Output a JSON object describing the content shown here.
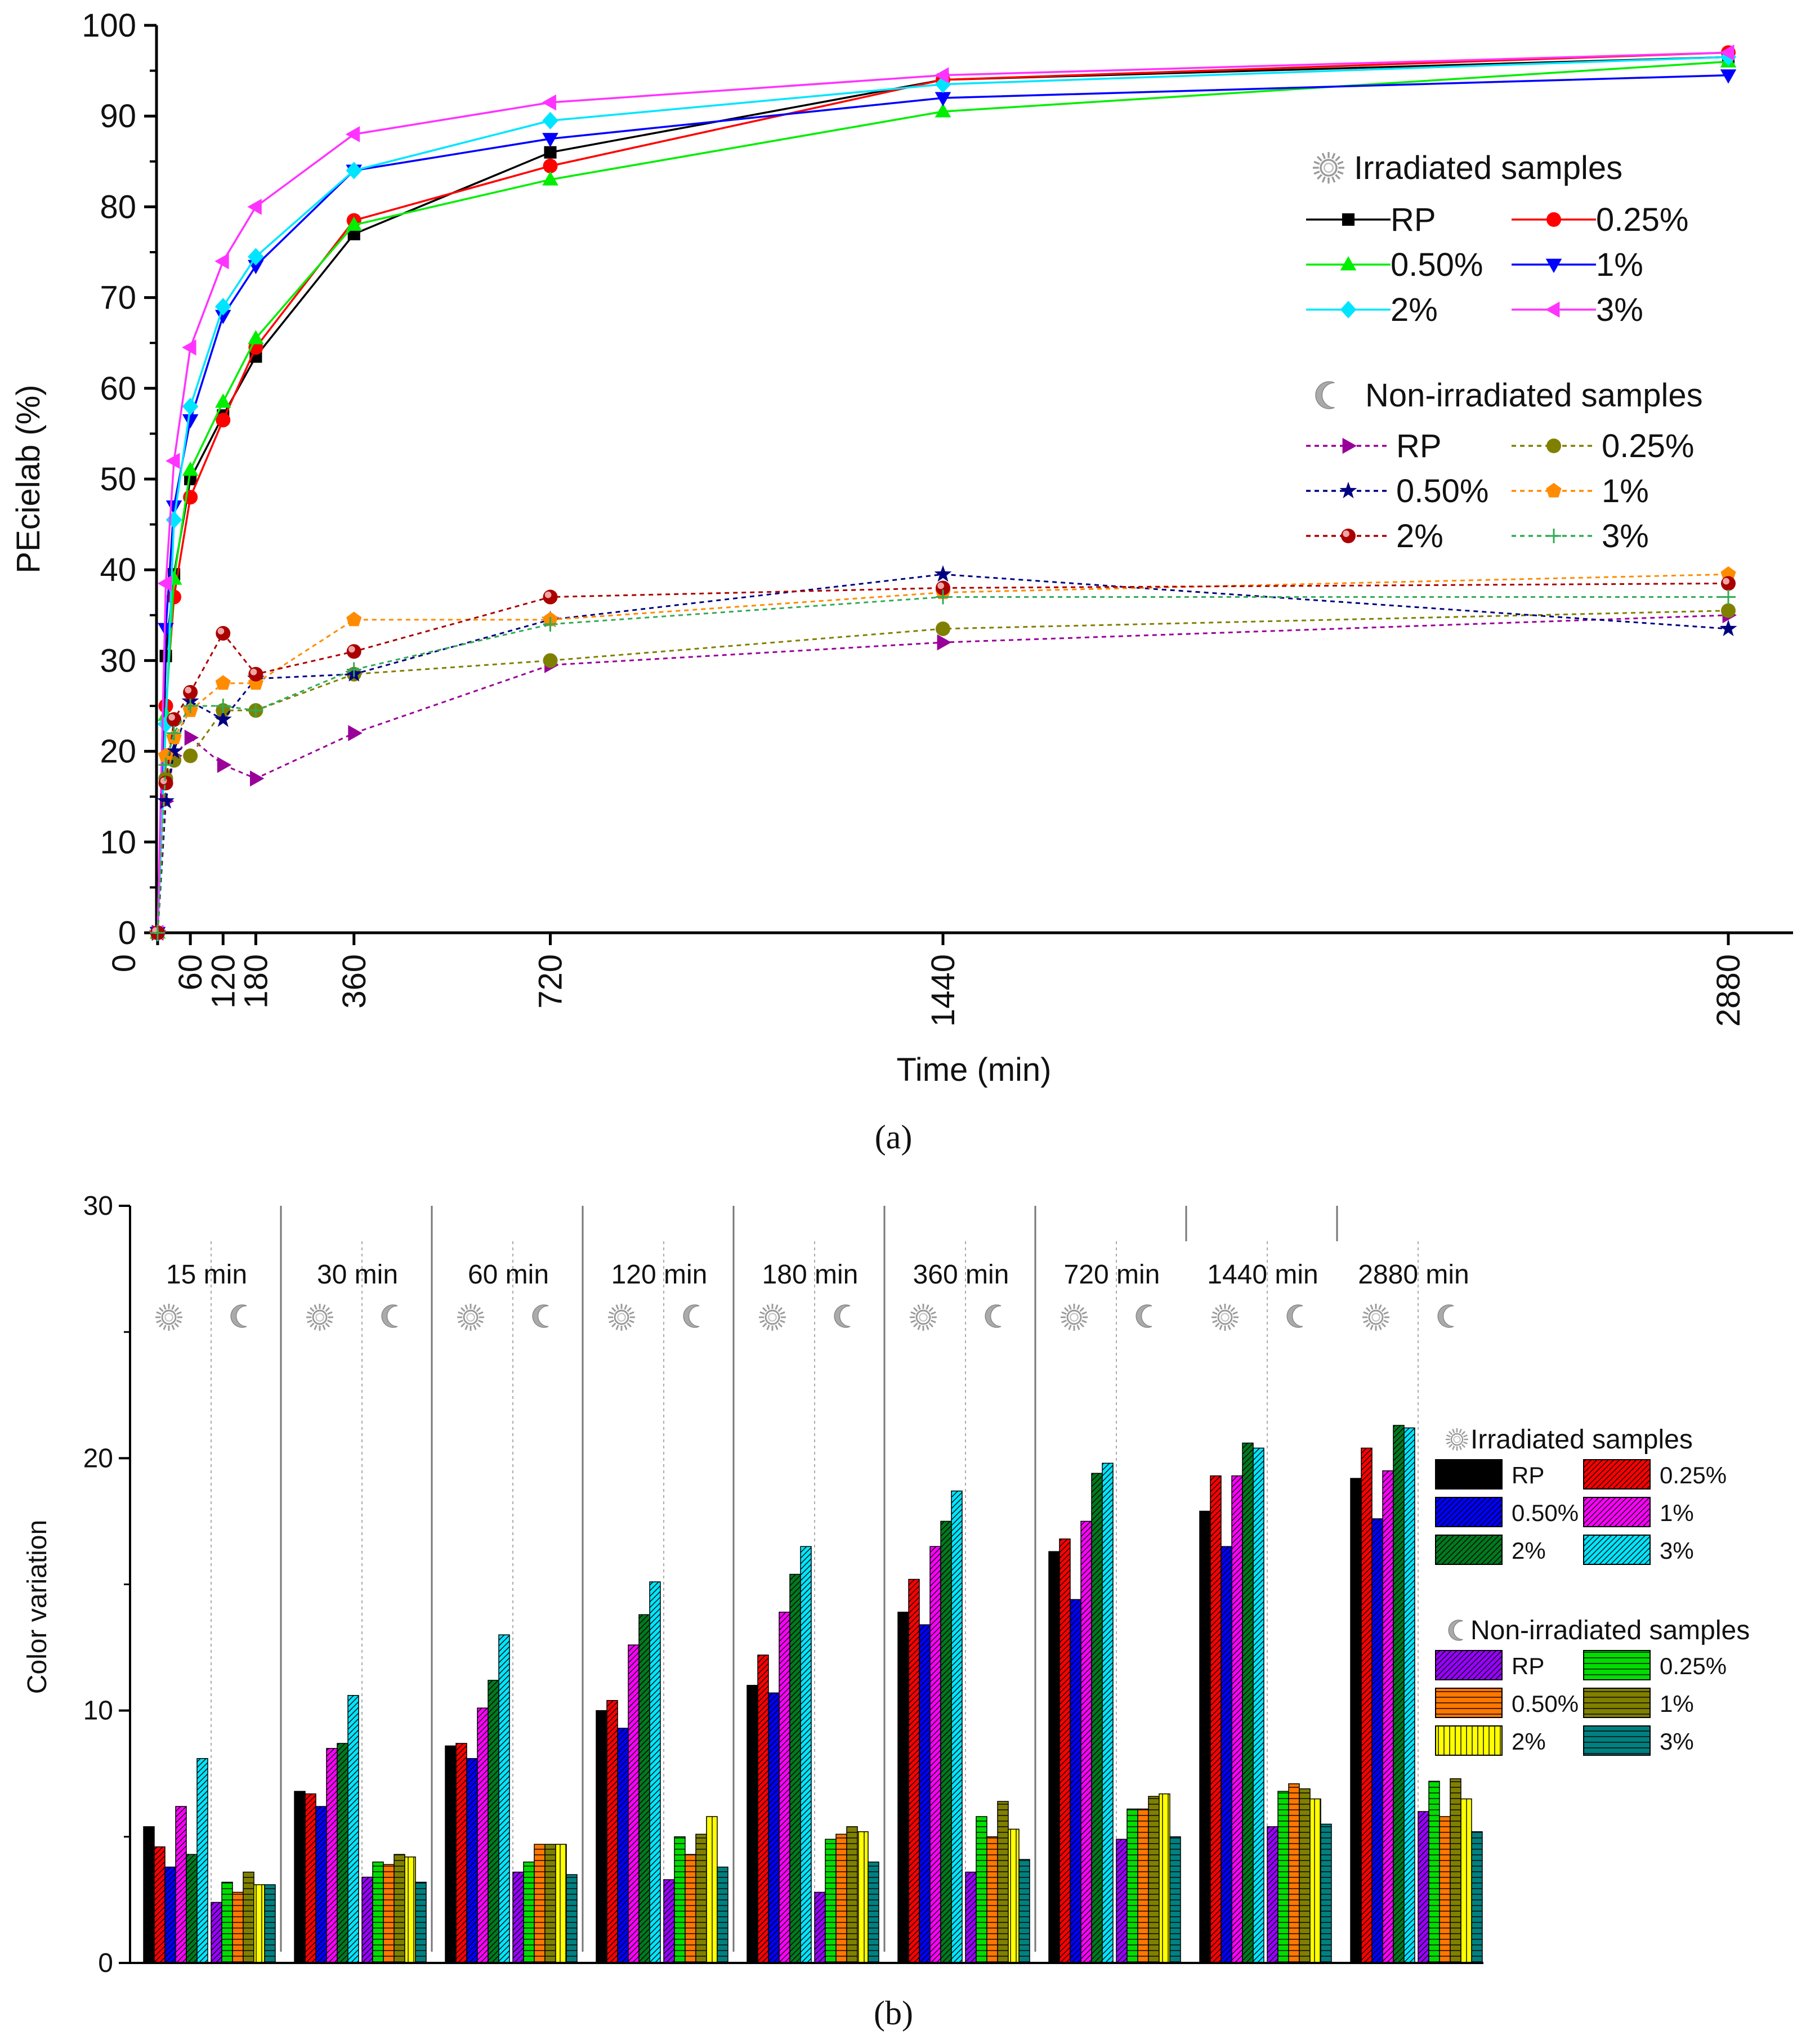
{
  "chart_data": [
    {
      "panel_label": "(a)",
      "type": "line",
      "xlabel": "Time (min)",
      "ylabel": "PEcielab (%)",
      "xlim": [
        0,
        2880
      ],
      "ylim": [
        0,
        100
      ],
      "x_ticks": [
        "0",
        "60",
        "120",
        "180",
        "360",
        "720",
        "1440",
        "2880"
      ],
      "y_ticks": [
        "0",
        "10",
        "20",
        "30",
        "40",
        "50",
        "60",
        "70",
        "80",
        "90",
        "100"
      ],
      "x": [
        0,
        15,
        30,
        60,
        120,
        180,
        360,
        720,
        1440,
        2880
      ],
      "legend_irradiated_title": "Irradiated samples",
      "legend_nonirradiated_title": "Non-irradiated samples",
      "series": [
        {
          "name": "RP",
          "group": "irradiated",
          "color": "#000000",
          "marker": "square",
          "values": [
            0,
            30.5,
            39.5,
            50,
            57,
            63.5,
            77,
            86,
            94,
            96.5
          ]
        },
        {
          "name": "0.25%",
          "group": "irradiated",
          "color": "#ff0000",
          "marker": "circle",
          "values": [
            0,
            25,
            37,
            48,
            56.5,
            64.5,
            78.5,
            84.5,
            94,
            97
          ]
        },
        {
          "name": "0.50%",
          "group": "irradiated",
          "color": "#00ee00",
          "marker": "triangle-up",
          "values": [
            0,
            24,
            39,
            51,
            58.5,
            65.5,
            78,
            83,
            90.5,
            96
          ]
        },
        {
          "name": "1%",
          "group": "irradiated",
          "color": "#0000ff",
          "marker": "triangle-down",
          "values": [
            0,
            33.5,
            47,
            56.5,
            68,
            73.5,
            84,
            87.5,
            92,
            94.5
          ]
        },
        {
          "name": "2%",
          "group": "irradiated",
          "color": "#00e5ff",
          "marker": "diamond",
          "values": [
            0,
            23,
            45.5,
            58,
            69,
            74.5,
            84,
            89.5,
            93.5,
            96.5
          ]
        },
        {
          "name": "3%",
          "group": "irradiated",
          "color": "#ff33ff",
          "marker": "triangle-left",
          "values": [
            0,
            38.5,
            52,
            64.5,
            74,
            80,
            88,
            91.5,
            94.5,
            97
          ]
        },
        {
          "name": "RP",
          "group": "nonirradiated",
          "color": "#990099",
          "marker": "triangle-right",
          "values": [
            0,
            14.5,
            19.5,
            21.5,
            18.5,
            17,
            22,
            29.5,
            32,
            35
          ]
        },
        {
          "name": "0.25%",
          "group": "nonirradiated",
          "color": "#808000",
          "marker": "circle",
          "values": [
            0,
            17,
            19,
            19.5,
            24.5,
            24.5,
            28.5,
            30,
            33.5,
            35.5
          ]
        },
        {
          "name": "0.50%",
          "group": "nonirradiated",
          "color": "#000080",
          "marker": "star",
          "values": [
            0,
            14.5,
            20,
            25.5,
            23.5,
            28,
            28.5,
            34.5,
            39.5,
            33.5
          ]
        },
        {
          "name": "1%",
          "group": "nonirradiated",
          "color": "#ff8c00",
          "marker": "pentagon",
          "values": [
            0,
            19.5,
            21.5,
            24.5,
            27.5,
            27.5,
            34.5,
            34.5,
            37.5,
            39.5
          ]
        },
        {
          "name": "2%",
          "group": "nonirradiated",
          "color": "#aa0000",
          "marker": "ball",
          "values": [
            0,
            16.5,
            23.5,
            26.5,
            33,
            28.5,
            31,
            37,
            38,
            38.5
          ]
        },
        {
          "name": "3%",
          "group": "nonirradiated",
          "color": "#33aa55",
          "marker": "plus",
          "values": [
            0,
            18.5,
            22,
            25,
            25,
            24.5,
            29,
            34,
            37,
            37
          ]
        }
      ]
    },
    {
      "panel_label": "(b)",
      "type": "bar",
      "ylabel": "Color variation",
      "ylim": [
        0,
        30
      ],
      "y_ticks": [
        "0",
        "10",
        "20",
        "30"
      ],
      "categories": [
        "15 min",
        "30 min",
        "60 min",
        "120 min",
        "180 min",
        "360 min",
        "720 min",
        "1440 min",
        "2880 min"
      ],
      "legend_irradiated_title": "Irradiated samples",
      "legend_nonirradiated_title": "Non-irradiated samples",
      "series": [
        {
          "name": "RP",
          "group": "irradiated",
          "color": "#000000",
          "values": [
            5.4,
            6.8,
            8.6,
            10,
            11,
            13.9,
            16.3,
            17.9,
            19.2
          ]
        },
        {
          "name": "0.25%",
          "group": "irradiated",
          "color": "#ff0000",
          "values": [
            4.6,
            6.7,
            8.7,
            10.4,
            12.2,
            15.2,
            16.8,
            19.3,
            20.4
          ]
        },
        {
          "name": "0.50%",
          "group": "irradiated",
          "color": "#0000ff",
          "values": [
            3.8,
            6.2,
            8.1,
            9.3,
            10.7,
            13.4,
            14.4,
            16.5,
            17.6
          ]
        },
        {
          "name": "1%",
          "group": "irradiated",
          "color": "#ff00ff",
          "values": [
            6.2,
            8.5,
            10.1,
            12.6,
            13.9,
            16.5,
            17.5,
            19.3,
            19.5
          ]
        },
        {
          "name": "2%",
          "group": "irradiated",
          "color": "#007a1f",
          "values": [
            4.3,
            8.7,
            11.2,
            13.8,
            15.4,
            17.5,
            19.4,
            20.6,
            21.3
          ]
        },
        {
          "name": "3%",
          "group": "irradiated",
          "color": "#00e5ff",
          "values": [
            8.1,
            10.6,
            13,
            15.1,
            16.5,
            18.7,
            19.8,
            20.4,
            21.2
          ]
        },
        {
          "name": "RP",
          "group": "nonirradiated",
          "color": "#9900ff",
          "values": [
            2.4,
            3.4,
            3.6,
            3.3,
            2.8,
            3.6,
            4.9,
            5.4,
            6
          ]
        },
        {
          "name": "0.25%",
          "group": "nonirradiated",
          "color": "#00dd00",
          "values": [
            3.2,
            4,
            4,
            5,
            4.9,
            5.8,
            6.1,
            6.8,
            7.2
          ]
        },
        {
          "name": "0.50%",
          "group": "nonirradiated",
          "color": "#ff7700",
          "values": [
            2.8,
            3.9,
            4.7,
            4.3,
            5.1,
            5,
            6.1,
            7.1,
            5.8
          ]
        },
        {
          "name": "1%",
          "group": "nonirradiated",
          "color": "#808000",
          "values": [
            3.6,
            4.3,
            4.7,
            5.1,
            5.4,
            6.4,
            6.6,
            6.9,
            7.3
          ]
        },
        {
          "name": "2%",
          "group": "nonirradiated",
          "color": "#ffff00",
          "values": [
            3.1,
            4.2,
            4.7,
            5.8,
            5.2,
            5.3,
            6.7,
            6.5,
            6.5
          ]
        },
        {
          "name": "3%",
          "group": "nonirradiated",
          "color": "#008080",
          "values": [
            3.1,
            3.2,
            3.5,
            3.8,
            4,
            4.1,
            5,
            5.5,
            5.2
          ]
        }
      ]
    }
  ]
}
